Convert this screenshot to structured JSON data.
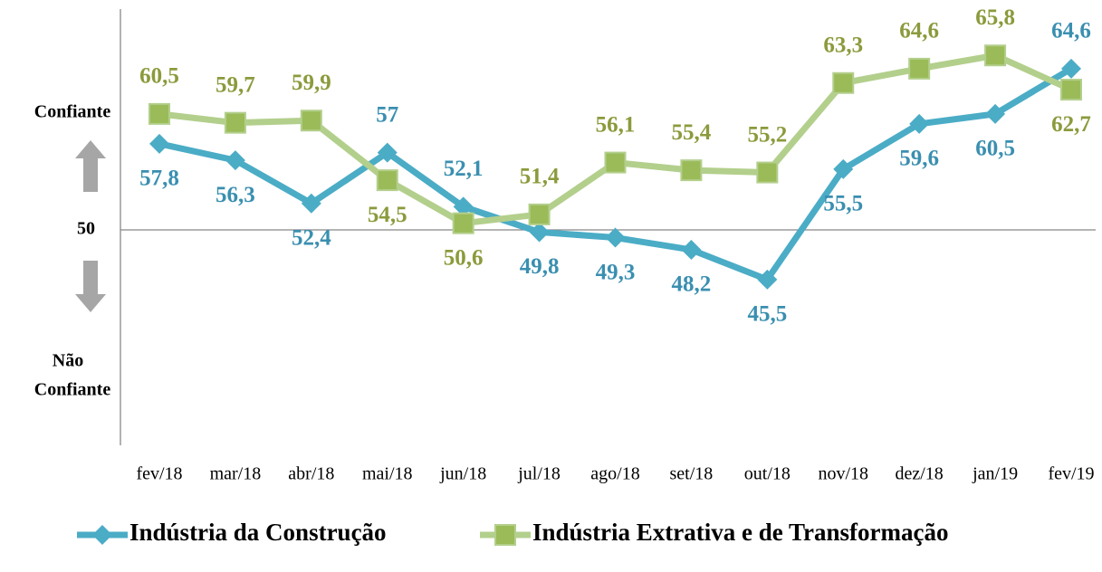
{
  "chart_data": {
    "type": "line",
    "categories": [
      "fev/18",
      "mar/18",
      "abr/18",
      "mai/18",
      "jun/18",
      "jul/18",
      "ago/18",
      "set/18",
      "out/18",
      "nov/18",
      "dez/18",
      "jan/19",
      "fev/19"
    ],
    "series": [
      {
        "name": "Indústria da Construção",
        "color": "#4bacc6",
        "label_color": "#3a8fb0",
        "marker": "diamond",
        "values": [
          57.8,
          56.3,
          52.4,
          57,
          52.1,
          49.8,
          49.3,
          48.2,
          45.5,
          55.5,
          59.6,
          60.5,
          64.6
        ],
        "value_labels": [
          "57,8",
          "56,3",
          "52,4",
          "57",
          "52,1",
          "49,8",
          "49,3",
          "48,2",
          "45,5",
          "55,5",
          "59,6",
          "60,5",
          "64,6"
        ]
      },
      {
        "name": "Indústria Extrativa e de Transformação",
        "color": "#b3cf8c",
        "marker_color": "#9bbb59",
        "label_color": "#8c9a3c",
        "marker": "square",
        "values": [
          60.5,
          59.7,
          59.9,
          54.5,
          50.6,
          51.4,
          56.1,
          55.4,
          55.2,
          63.3,
          64.6,
          65.8,
          62.7
        ],
        "value_labels": [
          "60,5",
          "59,7",
          "59,9",
          "54,5",
          "50,6",
          "51,4",
          "56,1",
          "55,4",
          "55,2",
          "63,3",
          "64,6",
          "65,8",
          "62,7"
        ]
      }
    ],
    "ylim": [
      30,
      70
    ],
    "yticks": [
      50
    ],
    "annotations": {
      "top": "Confiante",
      "bottom": [
        "Não",
        "Confiante"
      ]
    }
  }
}
